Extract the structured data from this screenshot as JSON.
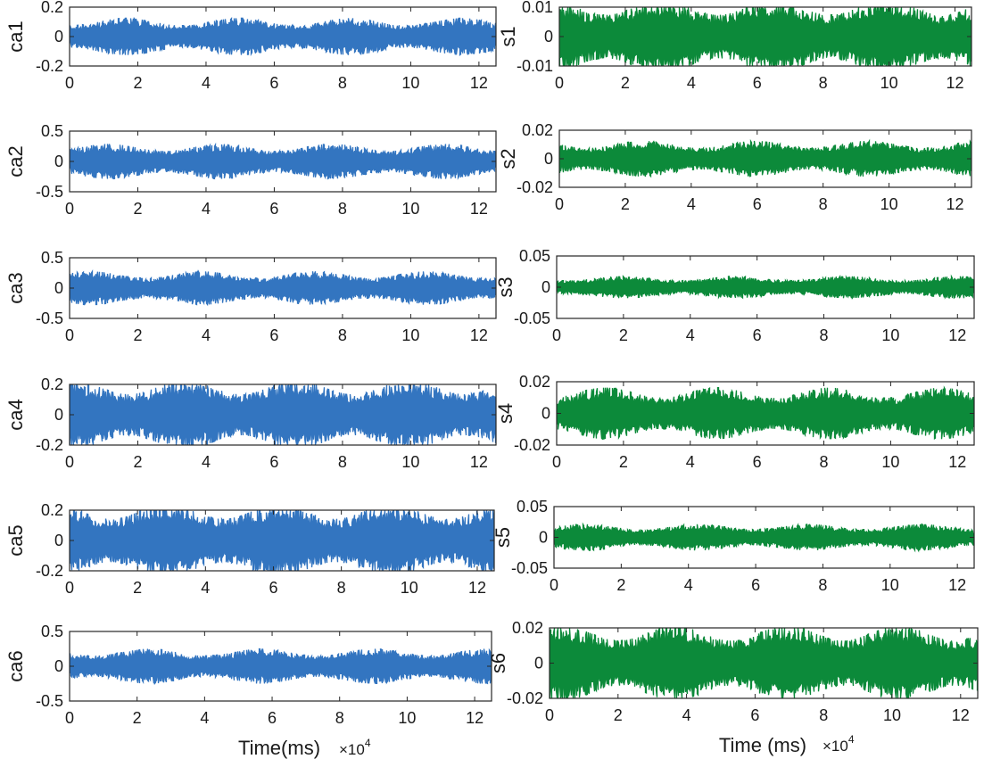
{
  "chart_data": [
    {
      "id": "ca1",
      "type": "line",
      "column": "left",
      "ylabel": "ca1",
      "ylim": [
        -0.2,
        0.2
      ],
      "yticks": [
        "0.2",
        "0",
        "-0.2"
      ],
      "xlim": [
        0,
        12.5
      ],
      "xticks": [
        "0",
        "2",
        "4",
        "6",
        "8",
        "10",
        "12"
      ],
      "amplitude": 0.1,
      "color": "#3375c0",
      "seed": 11,
      "x_multiplier": "×10",
      "x_multiplier_exp": "4",
      "xlabel": ""
    },
    {
      "id": "ca2",
      "type": "line",
      "column": "left",
      "ylabel": "ca2",
      "ylim": [
        -0.5,
        0.5
      ],
      "yticks": [
        "0.5",
        "0",
        "-0.5"
      ],
      "xlim": [
        0,
        12.5
      ],
      "xticks": [
        "0",
        "2",
        "4",
        "6",
        "8",
        "10",
        "12"
      ],
      "amplitude": 0.23,
      "color": "#3375c0",
      "seed": 12,
      "x_multiplier": "",
      "x_multiplier_exp": "",
      "xlabel": ""
    },
    {
      "id": "ca3",
      "type": "line",
      "column": "left",
      "ylabel": "ca3",
      "ylim": [
        -0.5,
        0.5
      ],
      "yticks": [
        "0.5",
        "0",
        "-0.5"
      ],
      "xlim": [
        0,
        12.5
      ],
      "xticks": [
        "0",
        "2",
        "4",
        "6",
        "8",
        "10",
        "12"
      ],
      "amplitude": 0.22,
      "color": "#3375c0",
      "seed": 13,
      "x_multiplier": "",
      "x_multiplier_exp": "",
      "xlabel": ""
    },
    {
      "id": "ca4",
      "type": "line",
      "column": "left",
      "ylabel": "ca4",
      "ylim": [
        -0.2,
        0.2
      ],
      "yticks": [
        "0.2",
        "0",
        "-0.2"
      ],
      "xlim": [
        0,
        12.5
      ],
      "xticks": [
        "0",
        "2",
        "4",
        "6",
        "8",
        "10",
        "12"
      ],
      "amplitude": 0.18,
      "color": "#3375c0",
      "seed": 14,
      "x_multiplier": "",
      "x_multiplier_exp": "",
      "xlabel": ""
    },
    {
      "id": "ca5",
      "type": "line",
      "column": "left",
      "ylabel": "ca5",
      "ylim": [
        -0.2,
        0.2
      ],
      "yticks": [
        "0.2",
        "0",
        "-0.2"
      ],
      "xlim": [
        0,
        12.5
      ],
      "xticks": [
        "0",
        "2",
        "4",
        "6",
        "8",
        "10",
        "12"
      ],
      "amplitude": 0.19,
      "color": "#3375c0",
      "seed": 15,
      "x_multiplier": "",
      "x_multiplier_exp": "",
      "xlabel": ""
    },
    {
      "id": "ca6",
      "type": "line",
      "column": "left",
      "ylabel": "ca6",
      "ylim": [
        -0.5,
        0.5
      ],
      "yticks": [
        "0.5",
        "0",
        "-0.5"
      ],
      "xlim": [
        0,
        12.5
      ],
      "xticks": [
        "0",
        "2",
        "4",
        "6",
        "8",
        "10",
        "12"
      ],
      "amplitude": 0.2,
      "color": "#3375c0",
      "seed": 16,
      "x_multiplier": "×10",
      "x_multiplier_exp": "4",
      "xlabel": "Time(ms)"
    },
    {
      "id": "s1",
      "type": "line",
      "column": "right",
      "ylabel": "s1",
      "ylim": [
        -0.01,
        0.01
      ],
      "yticks": [
        "0.01",
        "0",
        "-0.01"
      ],
      "xlim": [
        0,
        12.5
      ],
      "xticks": [
        "0",
        "2",
        "4",
        "6",
        "8",
        "10",
        "12"
      ],
      "amplitude": 0.0098,
      "color": "#0c8a3a",
      "seed": 21,
      "x_multiplier": "",
      "x_multiplier_exp": "",
      "xlabel": ""
    },
    {
      "id": "s2",
      "type": "line",
      "column": "right",
      "ylabel": "s2",
      "ylim": [
        -0.02,
        0.02
      ],
      "yticks": [
        "0.02",
        "0",
        "-0.02"
      ],
      "xlim": [
        0,
        12.5
      ],
      "xticks": [
        "0",
        "2",
        "4",
        "6",
        "8",
        "10",
        "12"
      ],
      "amplitude": 0.01,
      "color": "#0c8a3a",
      "seed": 22,
      "x_multiplier": "",
      "x_multiplier_exp": "",
      "xlabel": ""
    },
    {
      "id": "s3",
      "type": "line",
      "column": "right",
      "ylabel": "s3",
      "ylim": [
        -0.05,
        0.05
      ],
      "yticks": [
        "0.05",
        "0",
        "-0.05"
      ],
      "xlim": [
        0,
        12.5
      ],
      "xticks": [
        "0",
        "2",
        "4",
        "6",
        "8",
        "10",
        "12"
      ],
      "amplitude": 0.014,
      "color": "#0c8a3a",
      "seed": 23,
      "x_multiplier": "",
      "x_multiplier_exp": "",
      "xlabel": ""
    },
    {
      "id": "s4",
      "type": "line",
      "column": "right",
      "ylabel": "s4",
      "ylim": [
        -0.02,
        0.02
      ],
      "yticks": [
        "0.02",
        "0",
        "-0.02"
      ],
      "xlim": [
        0,
        12.5
      ],
      "xticks": [
        "0",
        "2",
        "4",
        "6",
        "8",
        "10",
        "12"
      ],
      "amplitude": 0.013,
      "color": "#0c8a3a",
      "seed": 24,
      "x_multiplier": "",
      "x_multiplier_exp": "",
      "xlabel": ""
    },
    {
      "id": "s5",
      "type": "line",
      "column": "right",
      "ylabel": "s5",
      "ylim": [
        -0.05,
        0.05
      ],
      "yticks": [
        "0.05",
        "0",
        "-0.05"
      ],
      "xlim": [
        0,
        12.5
      ],
      "xticks": [
        "0",
        "2",
        "4",
        "6",
        "8",
        "10",
        "12"
      ],
      "amplitude": 0.017,
      "color": "#0c8a3a",
      "seed": 25,
      "x_multiplier": "",
      "x_multiplier_exp": "",
      "xlabel": ""
    },
    {
      "id": "s6",
      "type": "line",
      "column": "right",
      "ylabel": "s6",
      "ylim": [
        -0.02,
        0.02
      ],
      "yticks": [
        "0.02",
        "0",
        "-0.02"
      ],
      "xlim": [
        0,
        12.5
      ],
      "xticks": [
        "0",
        "2",
        "4",
        "6",
        "8",
        "10",
        "12"
      ],
      "amplitude": 0.017,
      "color": "#0c8a3a",
      "seed": 26,
      "x_multiplier": "×10",
      "x_multiplier_exp": "4",
      "xlabel": "Time (ms)"
    }
  ]
}
